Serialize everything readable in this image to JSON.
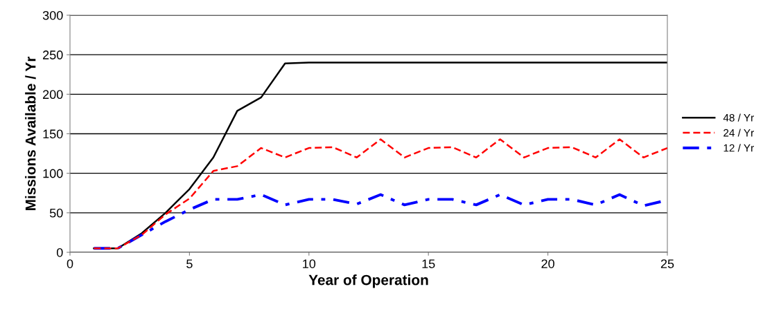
{
  "chart_data": {
    "type": "line",
    "xlabel": "Year of Operation",
    "ylabel": "Missions Available / Yr",
    "x": [
      1,
      2,
      3,
      4,
      5,
      6,
      7,
      8,
      9,
      10,
      11,
      12,
      13,
      14,
      15,
      16,
      17,
      18,
      19,
      20,
      21,
      22,
      23,
      24,
      25
    ],
    "series": [
      {
        "name": "48 / Yr",
        "color": "#000000",
        "line_style": "solid",
        "values": [
          5,
          5,
          24,
          50,
          80,
          120,
          179,
          196,
          239,
          240,
          240,
          240,
          240,
          240,
          240,
          240,
          240,
          240,
          240,
          240,
          240,
          240,
          240,
          240,
          240
        ]
      },
      {
        "name": "24 / Yr",
        "color": "#ff0000",
        "line_style": "dashed",
        "values": [
          5,
          5,
          22,
          48,
          68,
          103,
          109,
          132,
          120,
          132,
          133,
          120,
          143,
          120,
          132,
          133,
          120,
          143,
          120,
          132,
          133,
          120,
          143,
          120,
          132
        ]
      },
      {
        "name": "12 / Yr",
        "color": "#0000ff",
        "line_style": "dashdot",
        "values": [
          5,
          5,
          22,
          39,
          54,
          67,
          67,
          73,
          60,
          67,
          67,
          61,
          73,
          60,
          67,
          67,
          60,
          73,
          60,
          67,
          67,
          60,
          73,
          59,
          66
        ]
      }
    ],
    "xlim": [
      0,
      25
    ],
    "xticks": [
      0,
      5,
      10,
      15,
      20,
      25
    ],
    "ylim": [
      0,
      300
    ],
    "yticks": [
      0,
      50,
      100,
      150,
      200,
      250,
      300
    ],
    "grid": "y",
    "legend": "right",
    "marker": "none"
  }
}
